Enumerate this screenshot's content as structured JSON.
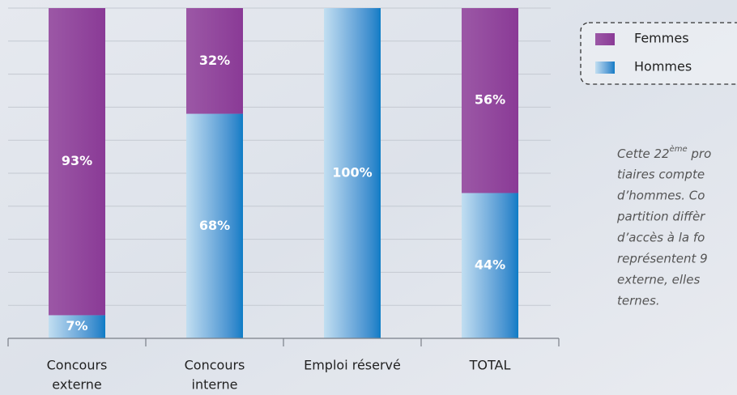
{
  "chart_data": {
    "type": "stacked_bar",
    "categories": [
      [
        "Concours",
        "externe"
      ],
      [
        "Concours",
        "interne"
      ],
      [
        "Emploi réservé"
      ],
      [
        "TOTAL"
      ]
    ],
    "series": [
      {
        "name": "Femmes",
        "color": "#8a3a96",
        "values": [
          93,
          32,
          0,
          56
        ],
        "value_labels": [
          "93%",
          "32%",
          null,
          "56%"
        ]
      },
      {
        "name": "Hommes",
        "color": "#0a7cc6",
        "values": [
          7,
          68,
          100,
          44
        ],
        "value_labels": [
          "7%",
          "68%",
          "100%",
          "44%"
        ]
      }
    ],
    "stack_order": [
      "Hommes",
      "Femmes"
    ],
    "ylim": [
      0,
      100
    ],
    "yticks": [
      0,
      10,
      20,
      30,
      40,
      50,
      60,
      70,
      80,
      90,
      100
    ],
    "grid": true,
    "legend": "top-right",
    "annotation": {
      "first_line": [
        "Cette 22",
        "ème",
        " pro"
      ],
      "lines": [
        "tiaires compte",
        "d’hommes. Co",
        "partition diffèr",
        "d’accès à la fo",
        "représentent 9",
        "externe, elles",
        "ternes."
      ]
    }
  }
}
